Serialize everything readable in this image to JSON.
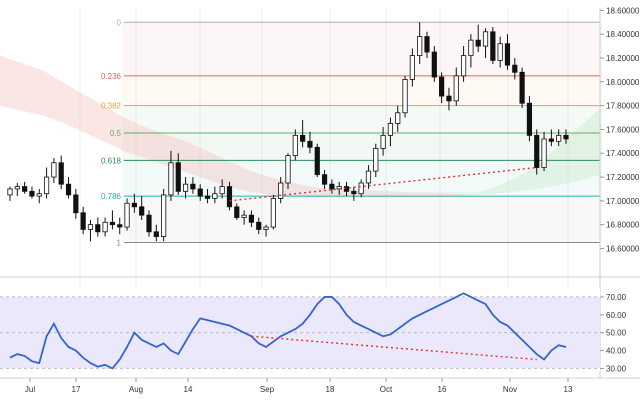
{
  "chart_data": [
    {
      "type": "candlestick",
      "panel": "price",
      "fibonacci_retracement": {
        "levels": [
          {
            "label": "0",
            "value": 18.5,
            "color": "#b0b0b0"
          },
          {
            "label": "0.236",
            "value": 18.05,
            "color": "#e06666"
          },
          {
            "label": "0.382",
            "value": 17.8,
            "color": "#f0a030"
          },
          {
            "label": "0.5",
            "value": 17.57,
            "color": "#60b060"
          },
          {
            "label": "0.618",
            "value": 17.34,
            "color": "#2e8b57"
          },
          {
            "label": "0.786",
            "value": 17.04,
            "color": "#20b2aa"
          },
          {
            "label": "1",
            "value": 16.65,
            "color": "#888888"
          }
        ]
      },
      "y_axis_ticks": [
        "18.60000",
        "18.40000",
        "18.20000",
        "18.00000",
        "17.80000",
        "17.60000",
        "17.40000",
        "17.20000",
        "17.00000",
        "16.80000",
        "16.60000"
      ],
      "ylim": [
        16.52,
        18.62
      ],
      "x_axis_ticks": [
        "Jul",
        "17",
        "Aug",
        "14",
        "Sep",
        "18",
        "Oct",
        "16",
        "Nov",
        "13"
      ],
      "candles": [
        [
          17.05,
          17.12,
          17.0,
          17.1
        ],
        [
          17.1,
          17.15,
          17.04,
          17.12
        ],
        [
          17.12,
          17.16,
          17.06,
          17.08
        ],
        [
          17.08,
          17.12,
          17.02,
          17.04
        ],
        [
          17.04,
          17.1,
          16.98,
          17.06
        ],
        [
          17.06,
          17.28,
          17.02,
          17.2
        ],
        [
          17.2,
          17.36,
          17.15,
          17.32
        ],
        [
          17.32,
          17.38,
          17.1,
          17.14
        ],
        [
          17.14,
          17.2,
          17.02,
          17.05
        ],
        [
          17.05,
          17.1,
          16.85,
          16.9
        ],
        [
          16.9,
          16.95,
          16.72,
          16.76
        ],
        [
          16.76,
          16.84,
          16.66,
          16.8
        ],
        [
          16.8,
          16.86,
          16.7,
          16.74
        ],
        [
          16.74,
          16.86,
          16.7,
          16.82
        ],
        [
          16.82,
          16.92,
          16.76,
          16.8
        ],
        [
          16.8,
          16.86,
          16.72,
          16.78
        ],
        [
          16.78,
          17.02,
          16.75,
          16.98
        ],
        [
          16.98,
          17.06,
          16.9,
          16.95
        ],
        [
          16.95,
          17.04,
          16.84,
          16.88
        ],
        [
          16.88,
          16.92,
          16.7,
          16.74
        ],
        [
          16.74,
          16.8,
          16.66,
          16.7
        ],
        [
          16.7,
          17.1,
          16.66,
          17.05
        ],
        [
          17.05,
          17.42,
          17.0,
          17.32
        ],
        [
          17.32,
          17.4,
          17.05,
          17.08
        ],
        [
          17.08,
          17.2,
          17.02,
          17.14
        ],
        [
          17.14,
          17.2,
          17.06,
          17.1
        ],
        [
          17.1,
          17.14,
          17.0,
          17.04
        ],
        [
          17.04,
          17.1,
          16.98,
          17.02
        ],
        [
          17.02,
          17.12,
          16.98,
          17.06
        ],
        [
          17.06,
          17.18,
          17.02,
          17.12
        ],
        [
          17.12,
          17.16,
          16.92,
          16.95
        ],
        [
          16.95,
          16.98,
          16.84,
          16.86
        ],
        [
          16.86,
          16.92,
          16.8,
          16.88
        ],
        [
          16.88,
          16.92,
          16.78,
          16.82
        ],
        [
          16.82,
          16.86,
          16.72,
          16.76
        ],
        [
          16.76,
          16.8,
          16.7,
          16.78
        ],
        [
          16.78,
          17.05,
          16.76,
          17.02
        ],
        [
          17.02,
          17.2,
          16.98,
          17.15
        ],
        [
          17.15,
          17.4,
          17.1,
          17.38
        ],
        [
          17.38,
          17.6,
          17.34,
          17.55
        ],
        [
          17.55,
          17.68,
          17.45,
          17.5
        ],
        [
          17.5,
          17.58,
          17.4,
          17.45
        ],
        [
          17.45,
          17.48,
          17.2,
          17.22
        ],
        [
          17.22,
          17.26,
          17.1,
          17.14
        ],
        [
          17.14,
          17.18,
          17.06,
          17.1
        ],
        [
          17.1,
          17.16,
          17.05,
          17.12
        ],
        [
          17.12,
          17.16,
          17.04,
          17.08
        ],
        [
          17.08,
          17.12,
          17.0,
          17.06
        ],
        [
          17.06,
          17.18,
          17.03,
          17.15
        ],
        [
          17.15,
          17.3,
          17.1,
          17.25
        ],
        [
          17.25,
          17.48,
          17.2,
          17.44
        ],
        [
          17.44,
          17.62,
          17.38,
          17.55
        ],
        [
          17.55,
          17.7,
          17.46,
          17.65
        ],
        [
          17.65,
          17.8,
          17.58,
          17.74
        ],
        [
          17.74,
          18.05,
          17.7,
          18.02
        ],
        [
          18.02,
          18.28,
          17.96,
          18.22
        ],
        [
          18.22,
          18.5,
          18.15,
          18.38
        ],
        [
          18.38,
          18.42,
          18.2,
          18.25
        ],
        [
          18.25,
          18.3,
          18.0,
          18.04
        ],
        [
          18.04,
          18.08,
          17.82,
          17.88
        ],
        [
          17.88,
          17.95,
          17.76,
          17.84
        ],
        [
          17.84,
          18.12,
          17.8,
          18.05
        ],
        [
          18.05,
          18.3,
          18.0,
          18.22
        ],
        [
          18.22,
          18.4,
          18.12,
          18.35
        ],
        [
          18.35,
          18.48,
          18.25,
          18.3
        ],
        [
          18.3,
          18.45,
          18.2,
          18.42
        ],
        [
          18.42,
          18.46,
          18.15,
          18.18
        ],
        [
          18.18,
          18.38,
          18.12,
          18.32
        ],
        [
          18.32,
          18.4,
          18.1,
          18.14
        ],
        [
          18.14,
          18.2,
          18.02,
          18.08
        ],
        [
          18.08,
          18.12,
          17.78,
          17.82
        ],
        [
          17.82,
          17.88,
          17.5,
          17.55
        ],
        [
          17.55,
          17.6,
          17.22,
          17.28
        ],
        [
          17.28,
          17.58,
          17.25,
          17.52
        ],
        [
          17.52,
          17.6,
          17.46,
          17.5
        ],
        [
          17.5,
          17.6,
          17.46,
          17.55
        ],
        [
          17.55,
          17.6,
          17.48,
          17.52
        ]
      ],
      "ichimoku_cloud": {
        "upper": [
          18.22,
          18.16,
          18.1,
          18.0,
          17.9,
          17.8,
          17.7,
          17.62,
          17.56,
          17.5,
          17.42,
          17.34,
          17.26,
          17.2,
          17.16,
          17.12,
          17.1,
          17.1,
          17.09,
          17.08,
          17.07,
          17.07,
          17.07,
          17.07,
          17.12,
          17.2,
          17.3,
          17.46,
          17.62,
          17.78
        ],
        "lower": [
          17.8,
          17.76,
          17.72,
          17.66,
          17.58,
          17.5,
          17.42,
          17.36,
          17.3,
          17.24,
          17.18,
          17.12,
          17.08,
          17.05,
          17.04,
          17.03,
          17.03,
          17.03,
          17.03,
          17.03,
          17.03,
          17.03,
          17.04,
          17.05,
          17.06,
          17.08,
          17.1,
          17.13,
          17.17,
          17.22
        ],
        "bearish_until_index": 22
      },
      "support_trendline": {
        "from": [
          30,
          17.0
        ],
        "to": [
          72,
          17.28
        ],
        "color": "#e03030"
      }
    },
    {
      "type": "line",
      "panel": "oscillator",
      "series": [
        {
          "color": "#3366cc",
          "values": [
            36,
            38,
            37,
            34,
            33,
            48,
            55,
            47,
            42,
            40,
            36,
            33,
            31,
            32,
            30,
            35,
            42,
            50,
            46,
            44,
            42,
            44,
            40,
            38,
            45,
            52,
            58,
            57,
            56,
            55,
            54,
            52,
            50,
            48,
            44,
            42,
            45,
            48,
            50,
            52,
            55,
            60,
            66,
            70,
            70,
            66,
            60,
            56,
            54,
            52,
            50,
            48,
            49,
            52,
            55,
            58,
            60,
            62,
            64,
            66,
            68,
            70,
            72,
            70,
            68,
            66,
            60,
            56,
            54,
            50,
            46,
            42,
            38,
            35,
            40,
            43,
            42
          ]
        }
      ],
      "y_axis_ticks": [
        "70.00",
        "60.00",
        "50.00",
        "40.00",
        "30.00"
      ],
      "ylim": [
        28,
        75
      ],
      "reference_lines": [
        30,
        50,
        70
      ],
      "divergence_trendline": {
        "from": [
          33,
          48
        ],
        "to": [
          72,
          35
        ],
        "color": "#e03030"
      }
    }
  ]
}
